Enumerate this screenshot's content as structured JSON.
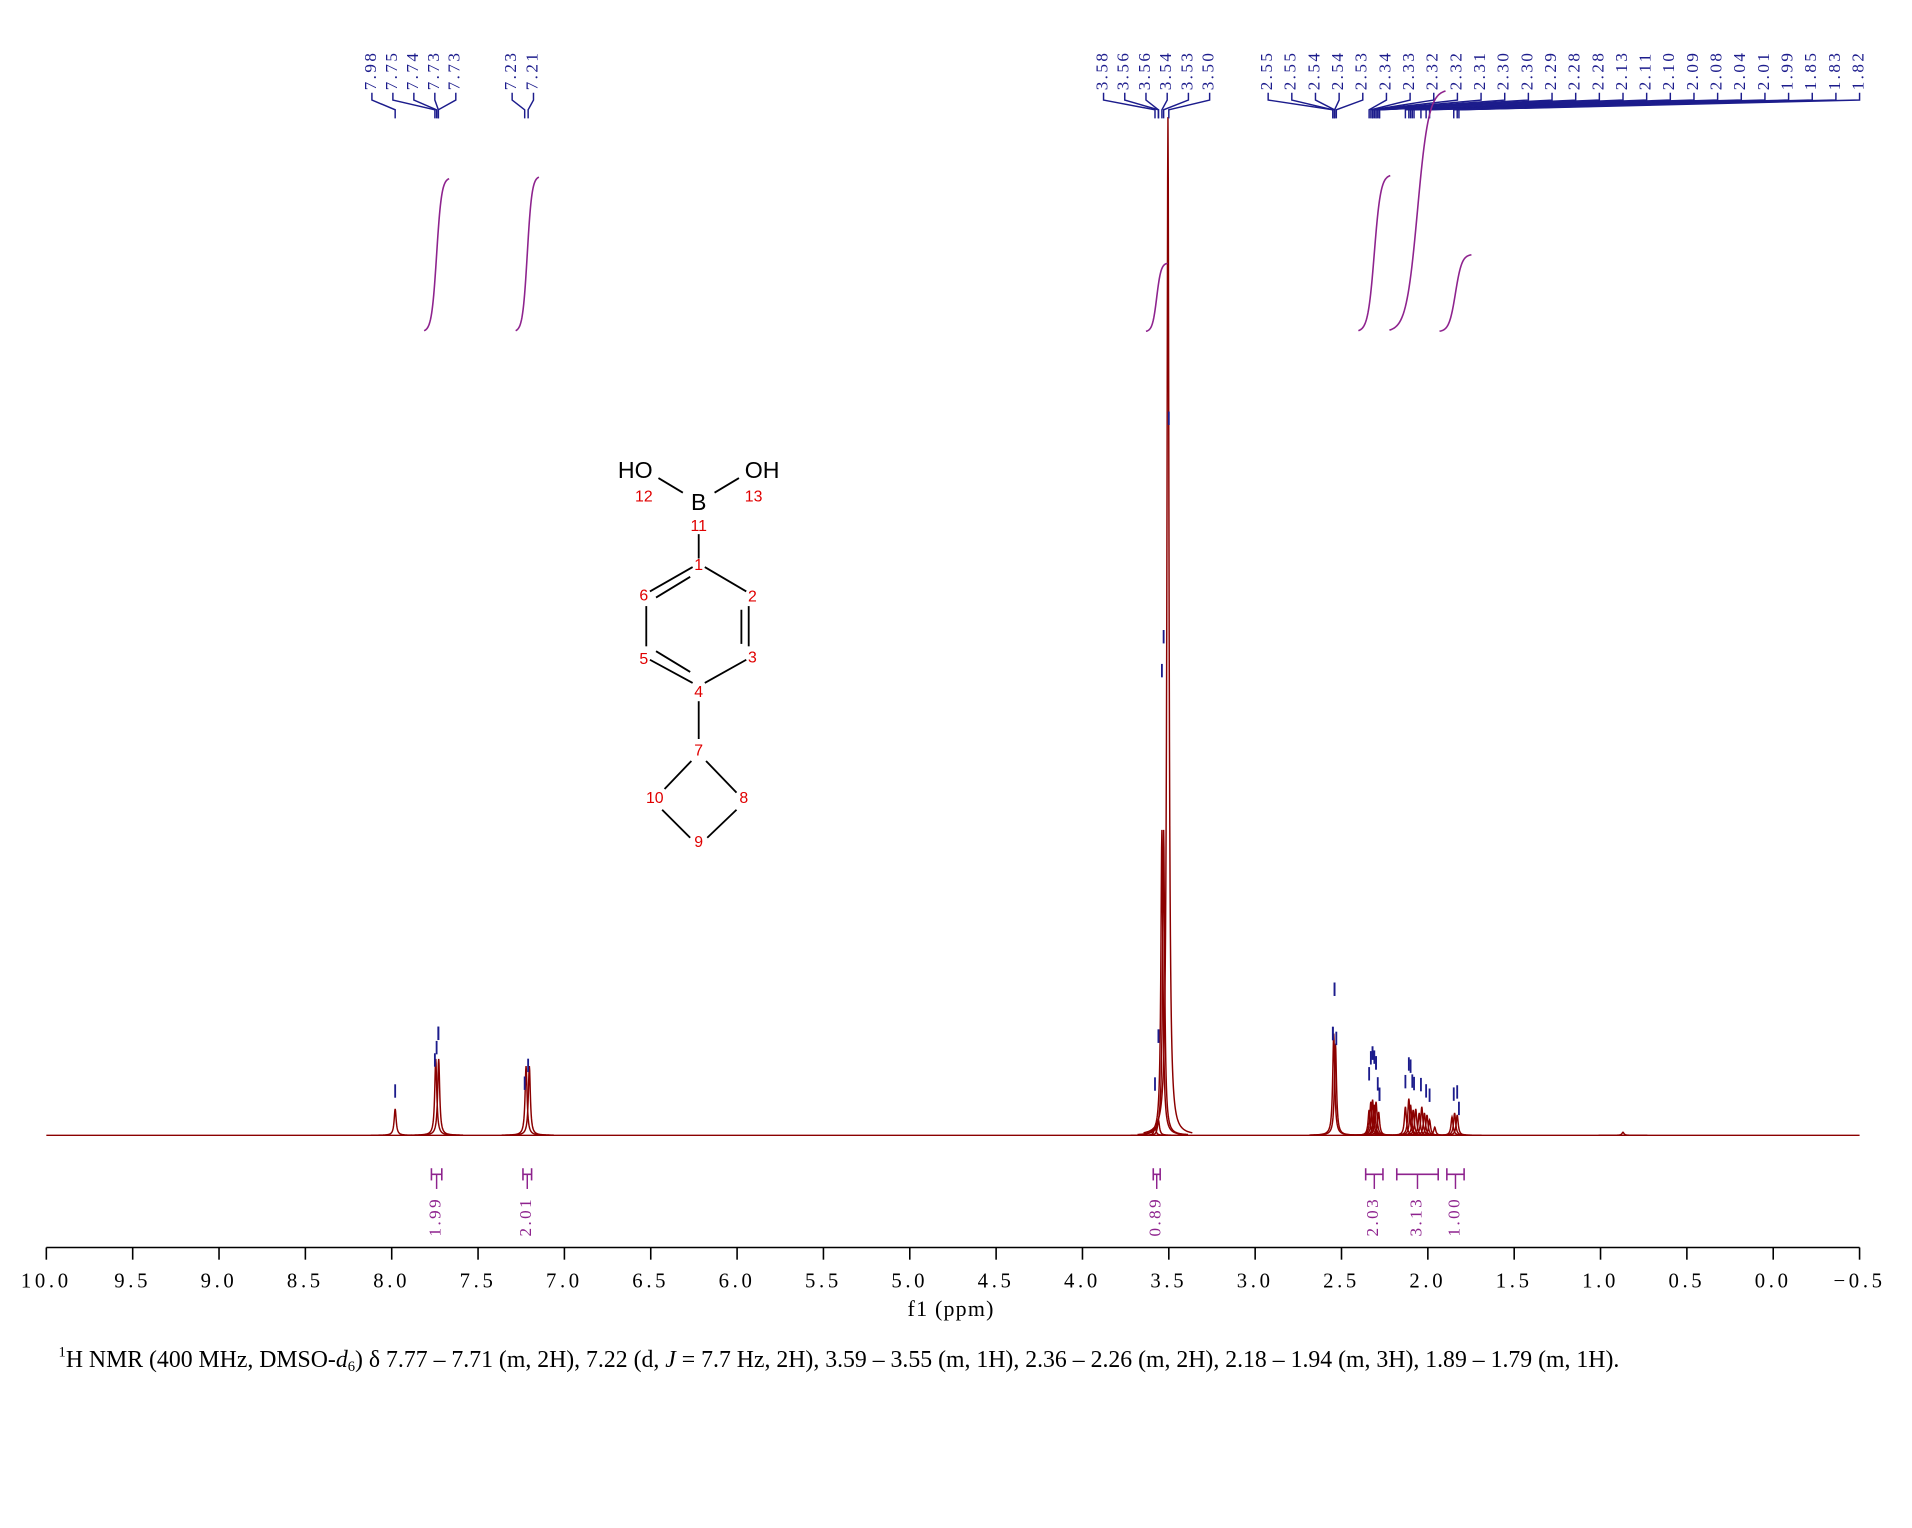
{
  "chart_data": {
    "type": "nmr",
    "xlabel": "f1 (ppm)",
    "xlim": [
      10,
      -0.5
    ],
    "xticks": [
      {
        "value": 10,
        "label": "10.0"
      },
      9.5,
      {
        "value": 9,
        "label": "9.0"
      },
      8.5,
      {
        "value": 8,
        "label": "8.0"
      },
      7.5,
      {
        "value": 7,
        "label": "7.0"
      },
      6.5,
      {
        "value": 6,
        "label": "6.0"
      },
      5.5,
      {
        "value": 5,
        "label": "5.0"
      },
      4.5,
      {
        "value": 4,
        "label": "4.0"
      },
      3.5,
      {
        "value": 3,
        "label": "3.0"
      },
      2.5,
      {
        "value": 2,
        "label": "2.0"
      },
      1.5,
      {
        "value": 1,
        "label": "1.0"
      },
      0.5,
      {
        "value": 0,
        "label": "0.0"
      },
      {
        "value": -0.5,
        "label": "−0.5"
      }
    ],
    "peak_label_groups": [
      [
        7.98,
        7.75,
        7.74,
        7.73,
        7.73
      ],
      [
        7.23,
        7.21
      ],
      [
        3.58,
        3.56,
        3.56,
        3.54,
        3.53,
        {
          "value": 3.5,
          "label": "3.50"
        }
      ],
      [
        2.55,
        2.55,
        2.54,
        2.54,
        2.53,
        2.34,
        2.33,
        2.32,
        2.32,
        2.31,
        {
          "value": 2.3,
          "label": "2.30"
        },
        {
          "value": 2.3,
          "label": "2.30"
        },
        2.29,
        2.28,
        2.28,
        2.13,
        2.11,
        {
          "value": 2.1,
          "label": "2.10"
        },
        2.09,
        2.08,
        2.04,
        2.01,
        1.99,
        1.85,
        1.83,
        1.82
      ]
    ],
    "peaks": {
      "x": [
        7.98,
        7.745,
        7.728,
        7.222,
        7.203,
        3.58,
        3.56,
        3.54,
        3.53,
        3.505,
        2.545,
        2.535,
        2.34,
        2.33,
        2.32,
        2.31,
        2.3,
        2.285,
        2.13,
        2.11,
        2.1,
        2.085,
        2.07,
        2.05,
        2.035,
        2.02,
        2.005,
        1.99,
        1.96,
        1.86,
        1.845,
        1.83,
        0.87
      ],
      "height": [
        2.6,
        7.5,
        7.5,
        6.8,
        6.8,
        0.8,
        1.5,
        30,
        30,
        100,
        10,
        9,
        2.5,
        3.3,
        3.5,
        3,
        3.3,
        2.3,
        2.8,
        3.6,
        3,
        2.5,
        2.6,
        2.2,
        2.8,
        2.2,
        2,
        1.5,
        0.8,
        1.8,
        2.2,
        2,
        0.3
      ]
    },
    "integrals": {
      "ranges": [
        [
          7.77,
          7.71
        ],
        [
          7.24,
          7.19
        ],
        [
          3.59,
          3.55
        ],
        [
          2.36,
          2.26
        ],
        [
          2.18,
          1.94
        ],
        [
          1.89,
          1.79
        ]
      ],
      "values": [
        1.99,
        2.01,
        0.89,
        2.03,
        3.13,
        {
          "value": 1,
          "label": "1.00"
        }
      ]
    },
    "color": "#8b0000",
    "label_color": "#1c1c8c",
    "integral_color": "#8e238e"
  },
  "structure": {
    "atoms": [
      "HO",
      "B",
      "OH"
    ],
    "numbers": [
      "1",
      "2",
      "3",
      "4",
      "5",
      "6",
      "7",
      "8",
      "9",
      "10",
      "11",
      "12",
      "13"
    ]
  },
  "caption": [
    "1",
    "H NMR (400 MHz, DMSO-",
    "d",
    "6",
    ") δ 7.77 – 7.71 (m, 2H), 7.22 (d, ",
    "J",
    " = 7.7 Hz, 2H), 3.59 – 3.55 (m, 1H), 2.36 – 2.26 (m, 2H), 2.18 – 1.94 (m, 3H), 1.89 – 1.79 (m, 1H)."
  ]
}
